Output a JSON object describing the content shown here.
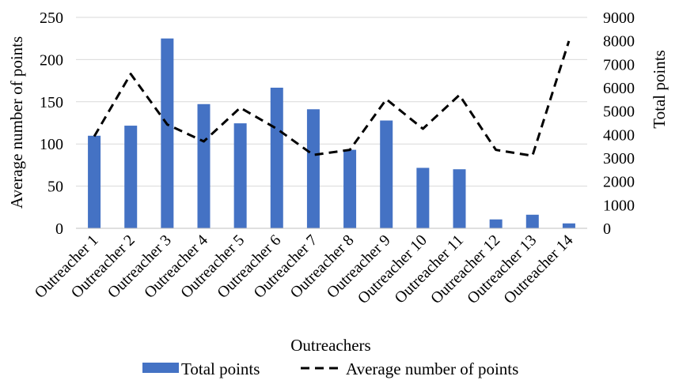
{
  "chart_data": {
    "type": "bar",
    "categories": [
      "Outreacher 1",
      "Outreacher 2",
      "Outreacher 3",
      "Outreacher 4",
      "Outreacher 5",
      "Outreacher 6",
      "Outreacher 7",
      "Outreacher 8",
      "Outreacher 9",
      "Outreacher 10",
      "Outreacher 11",
      "Outreacher 12",
      "Outreacher 13",
      "Outreacher 14"
    ],
    "series": [
      {
        "name": "Total points",
        "type": "bar",
        "axis": "right",
        "color": "#4472c4",
        "values": [
          3950,
          4380,
          8100,
          5300,
          4480,
          6000,
          5080,
          3350,
          4600,
          2580,
          2520,
          380,
          580,
          210
        ]
      },
      {
        "name": "Average number of points",
        "type": "line",
        "axis": "left",
        "color": "#000000",
        "style": "dashed",
        "values": [
          109,
          183,
          123,
          103,
          143,
          118,
          87,
          93,
          153,
          118,
          158,
          93,
          86,
          222
        ]
      }
    ],
    "xlabel": "Outreachers",
    "ylabel_left": "Average number of points",
    "ylabel_right": "Total points",
    "ylim_left": [
      0,
      250
    ],
    "ylim_right": [
      0,
      9000
    ],
    "yticks_left": [
      "0",
      "50",
      "100",
      "150",
      "200",
      "250"
    ],
    "yticks_right": [
      "0",
      "1000",
      "2000",
      "3000",
      "4000",
      "5000",
      "6000",
      "7000",
      "8000",
      "9000"
    ],
    "grid": true,
    "legend_position": "bottom"
  }
}
